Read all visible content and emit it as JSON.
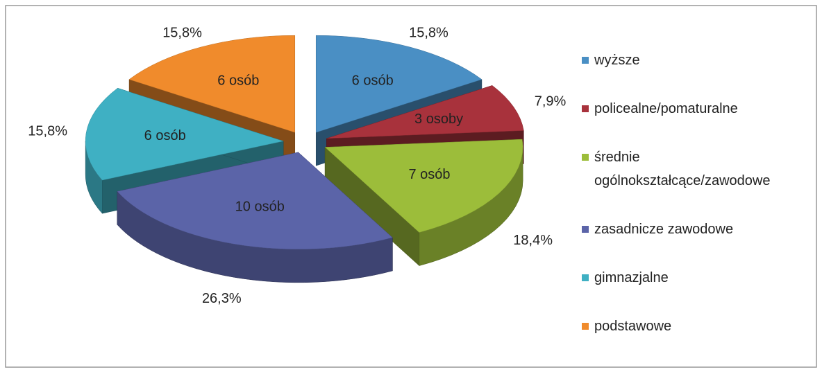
{
  "chart_data": {
    "type": "pie3d",
    "categories": [
      "wyższe",
      "policealne/pomaturalne",
      "średnie ogólnokształcące/zawodowe",
      "zasadnicze zawodowe",
      "gimnazjalne",
      "podstawowe"
    ],
    "values": [
      15.8,
      7.9,
      18.4,
      26.3,
      15.8,
      15.8
    ],
    "value_labels": [
      "15,8%",
      "7,9%",
      "18,4%",
      "26,3%",
      "15,8%",
      "15,8%"
    ],
    "counts": [
      6,
      3,
      7,
      10,
      6,
      6
    ],
    "count_labels": [
      "6 osób",
      "3 osoby",
      "7 osób",
      "10 osób",
      "6 osób",
      "6 osób"
    ],
    "colors": [
      "#4a8fc4",
      "#a8323c",
      "#9cbd3a",
      "#5b64a8",
      "#3fb0c3",
      "#f08b2c"
    ],
    "legend": "right"
  }
}
